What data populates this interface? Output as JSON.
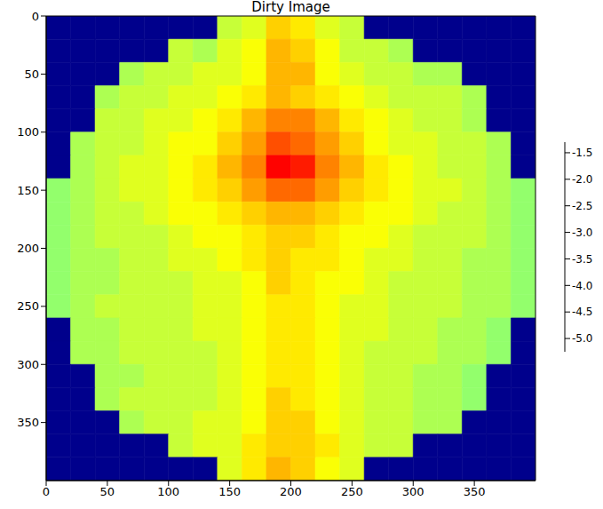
{
  "chart_data": {
    "type": "heatmap",
    "title": "Dirty Image",
    "xlim": [
      0,
      400
    ],
    "ylim": [
      400,
      0
    ],
    "xticks": [
      0,
      50,
      100,
      150,
      200,
      250,
      300,
      350
    ],
    "yticks": [
      0,
      50,
      100,
      150,
      200,
      250,
      300,
      350
    ],
    "x_edges": [
      0,
      20,
      40,
      60,
      80,
      100,
      120,
      140,
      160,
      180,
      200,
      220,
      240,
      260,
      280,
      300,
      320,
      340,
      360,
      380,
      400
    ],
    "y_edges": [
      0,
      20,
      40,
      60,
      80,
      100,
      120,
      140,
      160,
      180,
      200,
      220,
      240,
      260,
      280,
      300,
      320,
      340,
      360,
      380,
      400
    ],
    "cells": [
      [
        -5.2,
        -5.2,
        -5.2,
        -5.2,
        -5.2,
        -5.2,
        -5.2,
        -3.0,
        -2.9,
        -2.6,
        -2.7,
        -2.9,
        -3.0,
        -5.2,
        -5.2,
        -5.2,
        -5.2,
        -5.2,
        -5.2,
        -5.2
      ],
      [
        -5.2,
        -5.2,
        -5.2,
        -5.2,
        -5.2,
        -3.0,
        -3.1,
        -2.9,
        -2.8,
        -2.5,
        -2.6,
        -2.8,
        -3.0,
        -3.0,
        -3.1,
        -5.2,
        -5.2,
        -5.2,
        -5.2,
        -5.2
      ],
      [
        -5.2,
        -5.2,
        -5.2,
        -3.1,
        -3.0,
        -3.0,
        -2.9,
        -2.9,
        -2.8,
        -2.5,
        -2.5,
        -2.8,
        -2.9,
        -3.0,
        -3.0,
        -3.1,
        -3.1,
        -5.2,
        -5.2,
        -5.2
      ],
      [
        -5.2,
        -5.2,
        -3.1,
        -3.0,
        -3.0,
        -2.9,
        -2.9,
        -2.8,
        -2.7,
        -2.5,
        -2.6,
        -2.7,
        -2.8,
        -2.9,
        -3.0,
        -3.0,
        -3.0,
        -3.1,
        -5.2,
        -5.2
      ],
      [
        -5.2,
        -5.2,
        -3.0,
        -3.0,
        -2.9,
        -2.9,
        -2.8,
        -2.7,
        -2.5,
        -2.3,
        -2.3,
        -2.5,
        -2.7,
        -2.8,
        -2.9,
        -3.0,
        -3.0,
        -3.1,
        -5.2,
        -5.2
      ],
      [
        -5.2,
        -3.1,
        -3.0,
        -3.0,
        -2.9,
        -2.8,
        -2.8,
        -2.6,
        -2.4,
        -2.1,
        -2.2,
        -2.4,
        -2.6,
        -2.8,
        -2.9,
        -2.9,
        -3.0,
        -3.0,
        -3.1,
        -5.2
      ],
      [
        -5.2,
        -3.1,
        -3.0,
        -2.9,
        -2.9,
        -2.8,
        -2.7,
        -2.5,
        -2.3,
        -1.8,
        -1.9,
        -2.3,
        -2.5,
        -2.7,
        -2.8,
        -2.9,
        -3.0,
        -3.0,
        -3.1,
        -5.2
      ],
      [
        -3.2,
        -3.1,
        -3.0,
        -2.9,
        -2.9,
        -2.8,
        -2.7,
        -2.6,
        -2.4,
        -2.2,
        -2.2,
        -2.4,
        -2.6,
        -2.7,
        -2.8,
        -2.9,
        -2.9,
        -3.0,
        -3.1,
        -3.2
      ],
      [
        -3.2,
        -3.1,
        -3.0,
        -3.0,
        -2.9,
        -2.8,
        -2.8,
        -2.7,
        -2.6,
        -2.5,
        -2.5,
        -2.6,
        -2.7,
        -2.8,
        -2.8,
        -2.9,
        -3.0,
        -3.0,
        -3.1,
        -3.2
      ],
      [
        -3.2,
        -3.1,
        -3.0,
        -3.0,
        -3.0,
        -2.9,
        -2.8,
        -2.8,
        -2.7,
        -2.6,
        -2.6,
        -2.7,
        -2.8,
        -2.8,
        -2.9,
        -3.0,
        -3.0,
        -3.0,
        -3.1,
        -3.2
      ],
      [
        -3.2,
        -3.1,
        -3.1,
        -3.0,
        -3.0,
        -2.9,
        -2.9,
        -2.8,
        -2.7,
        -2.6,
        -2.7,
        -2.7,
        -2.8,
        -2.9,
        -2.9,
        -3.0,
        -3.0,
        -3.1,
        -3.1,
        -3.2
      ],
      [
        -3.2,
        -3.1,
        -3.1,
        -3.0,
        -3.0,
        -3.0,
        -2.9,
        -2.9,
        -2.8,
        -2.6,
        -2.7,
        -2.8,
        -2.8,
        -2.9,
        -3.0,
        -3.0,
        -3.0,
        -3.1,
        -3.1,
        -3.2
      ],
      [
        -3.2,
        -3.1,
        -3.0,
        -3.0,
        -3.0,
        -3.0,
        -2.9,
        -2.9,
        -2.8,
        -2.7,
        -2.7,
        -2.8,
        -2.9,
        -2.9,
        -3.0,
        -3.0,
        -3.0,
        -3.1,
        -3.1,
        -3.2
      ],
      [
        -5.2,
        -3.1,
        -3.1,
        -3.0,
        -3.0,
        -3.0,
        -2.9,
        -2.9,
        -2.8,
        -2.7,
        -2.7,
        -2.8,
        -2.9,
        -2.9,
        -3.0,
        -3.0,
        -3.1,
        -3.1,
        -3.2,
        -5.2
      ],
      [
        -5.2,
        -3.1,
        -3.1,
        -3.0,
        -3.0,
        -3.0,
        -3.0,
        -2.9,
        -2.8,
        -2.7,
        -2.7,
        -2.8,
        -2.9,
        -3.0,
        -3.0,
        -3.0,
        -3.1,
        -3.1,
        -3.2,
        -5.2
      ],
      [
        -5.2,
        -5.2,
        -3.1,
        -3.1,
        -3.0,
        -3.0,
        -3.0,
        -2.9,
        -2.8,
        -2.7,
        -2.7,
        -2.8,
        -2.9,
        -3.0,
        -3.0,
        -3.1,
        -3.1,
        -3.2,
        -5.2,
        -5.2
      ],
      [
        -5.2,
        -5.2,
        -3.1,
        -3.0,
        -3.0,
        -3.0,
        -3.0,
        -2.9,
        -2.8,
        -2.6,
        -2.7,
        -2.8,
        -2.9,
        -3.0,
        -3.0,
        -3.1,
        -3.1,
        -3.2,
        -5.2,
        -5.2
      ],
      [
        -5.2,
        -5.2,
        -5.2,
        -3.1,
        -3.0,
        -3.0,
        -2.9,
        -2.9,
        -2.8,
        -2.6,
        -2.6,
        -2.8,
        -2.9,
        -3.0,
        -3.0,
        -3.1,
        -3.1,
        -5.2,
        -5.2,
        -5.2
      ],
      [
        -5.2,
        -5.2,
        -5.2,
        -5.2,
        -5.2,
        -3.0,
        -2.9,
        -2.9,
        -2.7,
        -2.6,
        -2.6,
        -2.7,
        -2.9,
        -3.0,
        -3.0,
        -5.2,
        -5.2,
        -5.2,
        -5.2,
        -5.2
      ],
      [
        -5.2,
        -5.2,
        -5.2,
        -5.2,
        -5.2,
        -5.2,
        -5.2,
        -2.9,
        -2.7,
        -2.5,
        -2.6,
        -2.8,
        -2.9,
        -5.2,
        -5.2,
        -5.2,
        -5.2,
        -5.2,
        -5.2,
        -5.2
      ]
    ],
    "colorbar_range": [
      -5.25,
      -1.3
    ],
    "colorbar_ticks": [
      -1.5,
      {
        "value": -2,
        "label": "-2.0"
      },
      -2.5,
      {
        "value": -3,
        "label": "-3.0"
      },
      -3.5,
      {
        "value": -4,
        "label": "-4.0"
      },
      -4.5,
      {
        "value": -5,
        "label": "-5.0"
      }
    ]
  }
}
